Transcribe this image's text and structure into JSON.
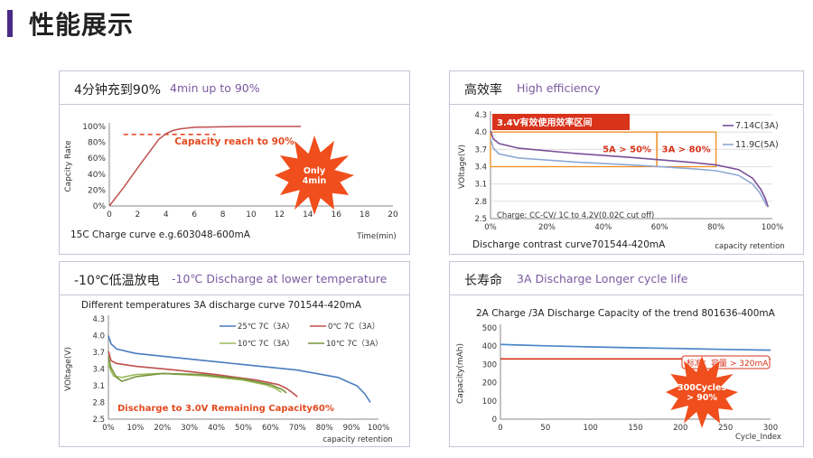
{
  "page": {
    "title": "性能展示"
  },
  "panels": {
    "fast_charge": {
      "title_cn": "4分钟充到90%",
      "title_en": "4min up to 90%",
      "caption": "15C Charge curve  e.g.603048-600mA"
    },
    "efficiency": {
      "title_cn": "高效率",
      "title_en": "High efficiency",
      "caption": "Discharge contrast curve701544-420mA"
    },
    "low_temp": {
      "title_cn": "-10℃低温放电",
      "title_en": "-10℃ Discharge at lower temperature"
    },
    "cycle_life": {
      "title_cn": "长寿命",
      "title_en": "3A Discharge Longer cycle life"
    }
  },
  "chart_data": [
    {
      "id": "fast_charge",
      "type": "line",
      "xlabel": "Time(min)",
      "ylabel": "Capcity Rate",
      "xlim": [
        0,
        20
      ],
      "ylim": [
        0,
        100
      ],
      "xticks": [
        0,
        2,
        4,
        6,
        8,
        10,
        12,
        14,
        16,
        18,
        20
      ],
      "yticks": [
        0,
        20,
        40,
        60,
        80,
        100
      ],
      "ytick_labels": [
        "0%",
        "20%",
        "40%",
        "60%",
        "80%",
        "100%"
      ],
      "series": [
        {
          "color": "#c0504d",
          "x": [
            0,
            1,
            2,
            3,
            3.5,
            4,
            4.5,
            5,
            6,
            8,
            10,
            12,
            13.5
          ],
          "y": [
            0,
            23,
            48,
            72,
            84,
            91,
            95,
            97,
            99,
            99.5,
            100,
            100,
            100
          ]
        }
      ],
      "reference_line": {
        "y": 90,
        "x": [
          1,
          7.5
        ],
        "color": "#e34a1f"
      },
      "annotations": [
        {
          "text": "Capacity  reach  to 90%",
          "x": 4.6,
          "y": 77,
          "color": "#e34a1f"
        }
      ],
      "burst": {
        "lines": [
          "Only",
          "4min"
        ],
        "color": "#f04e1c"
      }
    },
    {
      "id": "efficiency",
      "type": "line",
      "xlabel": "capacity retention",
      "ylabel": "VOltage(V)",
      "xlim": [
        0,
        100
      ],
      "ylim": [
        2.5,
        4.3
      ],
      "xticks": [
        0,
        20,
        40,
        60,
        80,
        100
      ],
      "xtick_labels": [
        "0%",
        "20%",
        "40%",
        "60%",
        "80%",
        "100%"
      ],
      "yticks": [
        2.5,
        2.8,
        3.1,
        3.4,
        3.7,
        4.0,
        4.3
      ],
      "ytick_labels": [
        "2.5",
        "2.8",
        "3.1",
        "3.4",
        "3.7",
        "4.0",
        "4.3"
      ],
      "series": [
        {
          "name": "7.14C(3A)",
          "color": "#7a4f9a",
          "x": [
            0,
            1,
            3,
            10,
            30,
            50,
            70,
            80,
            88,
            93,
            96,
            97.5,
            98.5
          ],
          "y": [
            4.02,
            3.88,
            3.8,
            3.72,
            3.63,
            3.56,
            3.48,
            3.43,
            3.35,
            3.2,
            3.0,
            2.85,
            2.7
          ]
        },
        {
          "name": "11.9C(5A)",
          "color": "#8da8d4",
          "x": [
            0,
            1,
            3,
            10,
            30,
            50,
            70,
            80,
            88,
            93,
            95.5,
            97,
            98
          ],
          "y": [
            3.88,
            3.72,
            3.62,
            3.55,
            3.48,
            3.43,
            3.37,
            3.33,
            3.25,
            3.1,
            2.95,
            2.82,
            2.72
          ]
        }
      ],
      "highlight": {
        "label": "3.4V有效使用效率区间",
        "color": "#f08c1e",
        "label_bg": "#d9331b",
        "boxes": [
          {
            "x": [
              0,
              59
            ],
            "y": [
              3.4,
              4.0
            ],
            "label": "5A > 50%"
          },
          {
            "x": [
              59,
              80
            ],
            "y": [
              3.4,
              4.0
            ],
            "label": "3A > 80%"
          }
        ]
      },
      "note": "Charge: CC-CV/ 1C to 4.2V(0.02C cut off)"
    },
    {
      "id": "low_temp",
      "type": "line",
      "title": "Different temperatures 3A discharge curve 701544-420mA",
      "xlabel": "capacity retention",
      "ylabel": "VOltage(V)",
      "xlim": [
        0,
        100
      ],
      "ylim": [
        2.5,
        4.3
      ],
      "xticks": [
        0,
        10,
        20,
        30,
        40,
        50,
        60,
        70,
        80,
        90,
        100
      ],
      "xtick_labels": [
        "0%",
        "10%",
        "20%",
        "30%",
        "40%",
        "50%",
        "60%",
        "70%",
        "80%",
        "90%",
        "100%"
      ],
      "yticks": [
        2.5,
        2.8,
        3.1,
        3.4,
        3.7,
        4.0,
        4.3
      ],
      "ytick_labels": [
        "2.5",
        "2.8",
        "3.1",
        "3.4",
        "3.7",
        "4.0",
        "4.3"
      ],
      "legend": "top",
      "series": [
        {
          "name": "25℃ 7C（3A）",
          "color": "#4a7cbf",
          "x": [
            0,
            1,
            3,
            10,
            30,
            50,
            70,
            85,
            92,
            95,
            97
          ],
          "y": [
            4.0,
            3.85,
            3.76,
            3.68,
            3.58,
            3.48,
            3.38,
            3.25,
            3.1,
            2.95,
            2.8
          ]
        },
        {
          "name": "0℃ 7C（3A）",
          "color": "#c0504d",
          "x": [
            0,
            1,
            3,
            10,
            25,
            40,
            55,
            63,
            66,
            68,
            70
          ],
          "y": [
            3.72,
            3.55,
            3.5,
            3.45,
            3.38,
            3.3,
            3.2,
            3.12,
            3.05,
            2.98,
            2.9
          ]
        },
        {
          "name": "10℃ 7C（3A）",
          "color": "#9bbb59",
          "x": [
            0,
            1,
            2,
            5,
            10,
            20,
            35,
            50,
            58,
            62,
            64
          ],
          "y": [
            3.5,
            3.36,
            3.27,
            3.25,
            3.3,
            3.32,
            3.28,
            3.2,
            3.12,
            3.05,
            2.98
          ]
        },
        {
          "name": "10℃  7C（3A）",
          "color": "#76933c",
          "x": [
            0,
            1,
            3,
            5,
            10,
            20,
            35,
            50,
            60,
            64,
            66
          ],
          "y": [
            3.62,
            3.42,
            3.25,
            3.18,
            3.26,
            3.32,
            3.3,
            3.22,
            3.12,
            3.04,
            2.97
          ]
        }
      ],
      "annotations": [
        {
          "text": "Discharge  to 3.0V Remaining Capacity60%",
          "x": 3,
          "y": 2.88,
          "color": "#e34a1f"
        }
      ]
    },
    {
      "id": "cycle_life",
      "type": "line",
      "title": "2A Charge /3A Discharge Capacity of the trend 801636-400mA",
      "xlabel": "Cycle_Index",
      "ylabel": "Capacity(mAh)",
      "xlim": [
        0,
        300
      ],
      "ylim": [
        0,
        500
      ],
      "xticks": [
        0,
        50,
        100,
        150,
        200,
        250,
        300
      ],
      "yticks": [
        0,
        100,
        200,
        300,
        400,
        500
      ],
      "series": [
        {
          "color": "#4a86c8",
          "x": [
            0,
            10,
            50,
            100,
            150,
            200,
            250,
            300
          ],
          "y": [
            410,
            408,
            402,
            396,
            391,
            387,
            382,
            378
          ]
        },
        {
          "color": "#d9331b",
          "x": [
            0,
            50,
            100,
            150,
            200,
            250,
            300
          ],
          "y": [
            330,
            330,
            330,
            330,
            330,
            330,
            330
          ]
        }
      ],
      "annotations": [
        {
          "text": "标准：容量 > 320mA",
          "x": 187,
          "y": 320,
          "color": "#d9331b"
        }
      ],
      "burst": {
        "lines": [
          "300Cycles",
          "> 90%"
        ],
        "color": "#f04e1c"
      }
    }
  ]
}
